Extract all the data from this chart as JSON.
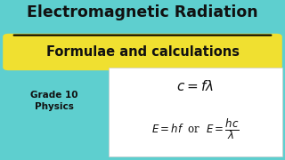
{
  "bg_color": "#5ecfcf",
  "title": "Electromagnetic Radiation",
  "subtitle": "Formulae and calculations",
  "subtitle_bg": "#f0e030",
  "grade_text": "Grade 10\nPhysics",
  "title_color": "#111111",
  "subtitle_color": "#111111",
  "grade_color": "#111111",
  "formula_color": "#111111",
  "box_color": "#ffffff",
  "title_fontsize": 12.5,
  "subtitle_fontsize": 10.5,
  "grade_fontsize": 7.5
}
